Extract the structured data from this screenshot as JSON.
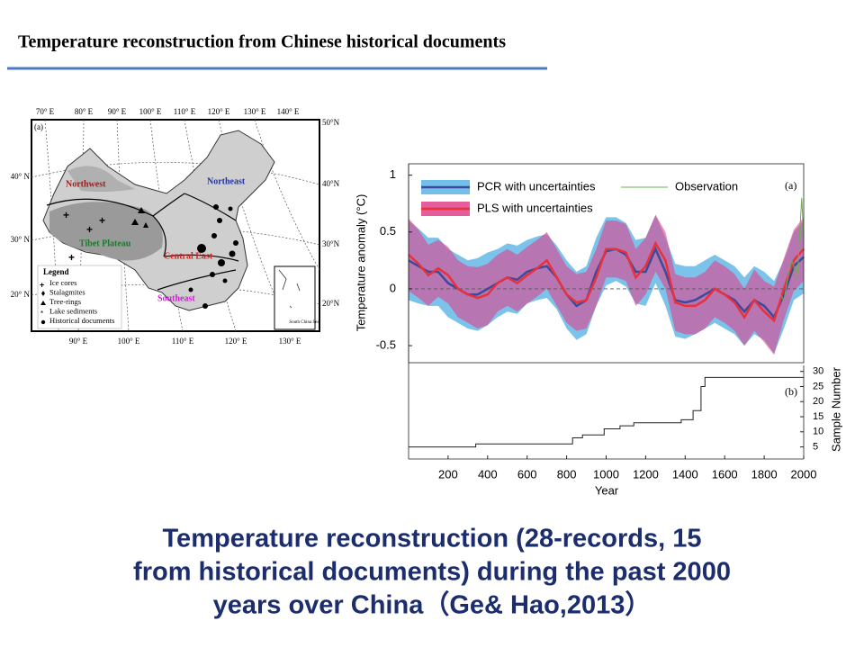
{
  "header": {
    "title": "Temperature reconstruction from Chinese historical documents"
  },
  "map": {
    "panel_label": "(a)",
    "top_lon": [
      "70° E",
      "80° E",
      "90° E",
      "100° E",
      "110° E",
      "120° E",
      "130° E",
      "140° E"
    ],
    "bottom_lon": [
      "90° E",
      "100° E",
      "110° E",
      "120° E",
      "130° E"
    ],
    "left_lat": [
      "40° N",
      "30° N",
      "20° N"
    ],
    "right_lat": [
      "50°N",
      "40°N",
      "30°N",
      "20°N"
    ],
    "regions": [
      {
        "label": "Northwest",
        "color": "#9b1b1b"
      },
      {
        "label": "Northeast",
        "color": "#2233aa"
      },
      {
        "label": "Tibet Plateau",
        "color": "#1a7a2a"
      },
      {
        "label": "Central East",
        "color": "#cc2222"
      },
      {
        "label": "Southeast",
        "color": "#cc22cc"
      }
    ],
    "legend": {
      "title": "Legend",
      "items": [
        "Ice cores",
        "Stalagmites",
        "Tree-rings",
        "Lake sediments",
        "Historical documents"
      ]
    },
    "inset_label": "South China Sea"
  },
  "chart_data": {
    "type": "line",
    "xlabel": "Year",
    "ylabel": "Temperature anomaly (°C)",
    "y2label": "Sample Number",
    "panel_labels": [
      "(a)",
      "(b)"
    ],
    "xlim": [
      0,
      2000
    ],
    "xticks": [
      200,
      400,
      600,
      800,
      1000,
      1200,
      1400,
      1600,
      1800,
      2000
    ],
    "ylim": [
      -0.65,
      1.1
    ],
    "yticks": [
      -0.5,
      0,
      0.5,
      1
    ],
    "y2lim": [
      1,
      32
    ],
    "y2ticks": [
      5,
      10,
      15,
      20,
      25,
      30
    ],
    "zero_line": true,
    "x": [
      0,
      50,
      100,
      150,
      200,
      250,
      300,
      350,
      400,
      450,
      500,
      550,
      600,
      650,
      700,
      750,
      800,
      850,
      900,
      950,
      1000,
      1050,
      1100,
      1150,
      1200,
      1250,
      1300,
      1350,
      1400,
      1450,
      1500,
      1550,
      1600,
      1650,
      1700,
      1750,
      1800,
      1850,
      1900,
      1950,
      2000
    ],
    "series": [
      {
        "name": "PCR with uncertainties",
        "color": "#3b4a9c",
        "band_color": "#5ab4e5",
        "values": [
          0.25,
          0.2,
          0.15,
          0.15,
          0.05,
          0,
          -0.05,
          -0.05,
          0,
          0.05,
          0.1,
          0.08,
          0.15,
          0.18,
          0.2,
          0.1,
          -0.05,
          -0.15,
          -0.1,
          0.15,
          0.33,
          0.35,
          0.3,
          0.15,
          0.15,
          0.35,
          0.15,
          -0.1,
          -0.12,
          -0.1,
          -0.05,
          0,
          -0.05,
          -0.1,
          -0.2,
          -0.1,
          -0.15,
          -0.25,
          -0.05,
          0.2,
          0.28
        ],
        "uncertainty": [
          0.35,
          0.33,
          0.3,
          0.3,
          0.3,
          0.3,
          0.3,
          0.32,
          0.32,
          0.3,
          0.3,
          0.3,
          0.28,
          0.28,
          0.28,
          0.28,
          0.3,
          0.3,
          0.3,
          0.3,
          0.3,
          0.28,
          0.28,
          0.28,
          0.3,
          0.3,
          0.3,
          0.32,
          0.32,
          0.3,
          0.3,
          0.3,
          0.3,
          0.3,
          0.3,
          0.3,
          0.3,
          0.32,
          0.3,
          0.3,
          0.32
        ]
      },
      {
        "name": "PLS with uncertainties",
        "color": "#e8313a",
        "band_color": "#e0428a",
        "values": [
          0.3,
          0.22,
          0.12,
          0.18,
          0.12,
          0,
          -0.05,
          -0.08,
          -0.05,
          0.05,
          0.1,
          0.05,
          0.12,
          0.18,
          0.25,
          0.1,
          -0.05,
          -0.12,
          -0.1,
          0.1,
          0.35,
          0.35,
          0.32,
          0.1,
          0.2,
          0.4,
          0.25,
          -0.12,
          -0.15,
          -0.15,
          -0.1,
          0,
          -0.05,
          -0.12,
          -0.25,
          -0.1,
          -0.2,
          -0.28,
          0,
          0.25,
          0.35
        ],
        "uncertainty": [
          0.32,
          0.3,
          0.27,
          0.25,
          0.25,
          0.25,
          0.25,
          0.27,
          0.27,
          0.25,
          0.25,
          0.25,
          0.25,
          0.25,
          0.25,
          0.25,
          0.25,
          0.25,
          0.25,
          0.25,
          0.25,
          0.25,
          0.25,
          0.25,
          0.25,
          0.25,
          0.25,
          0.25,
          0.25,
          0.25,
          0.25,
          0.25,
          0.25,
          0.25,
          0.25,
          0.27,
          0.27,
          0.3,
          0.27,
          0.27,
          0.28
        ]
      }
    ],
    "observation": {
      "name": "Observation",
      "color": "#6ab04c",
      "x": [
        1880,
        1900,
        1920,
        1940,
        1950,
        1960,
        1970,
        1980,
        1990,
        2000
      ],
      "values": [
        -0.05,
        -0.1,
        0.1,
        0.25,
        0.2,
        0.1,
        0.15,
        0.5,
        0.8,
        0.45
      ]
    },
    "samples": {
      "axis": "y2",
      "color": "#222222",
      "step": "post",
      "x": [
        0,
        340,
        830,
        880,
        990,
        1070,
        1140,
        1380,
        1440,
        1480,
        1500,
        2000
      ],
      "values": [
        5,
        6,
        8,
        9,
        11,
        12,
        13,
        14,
        17,
        25,
        28,
        28
      ]
    }
  },
  "caption": {
    "lines": [
      "Temperature reconstruction (28-records, 15",
      "from historical documents) during the past 2000",
      "years over China（Ge& Hao,2013）"
    ]
  }
}
